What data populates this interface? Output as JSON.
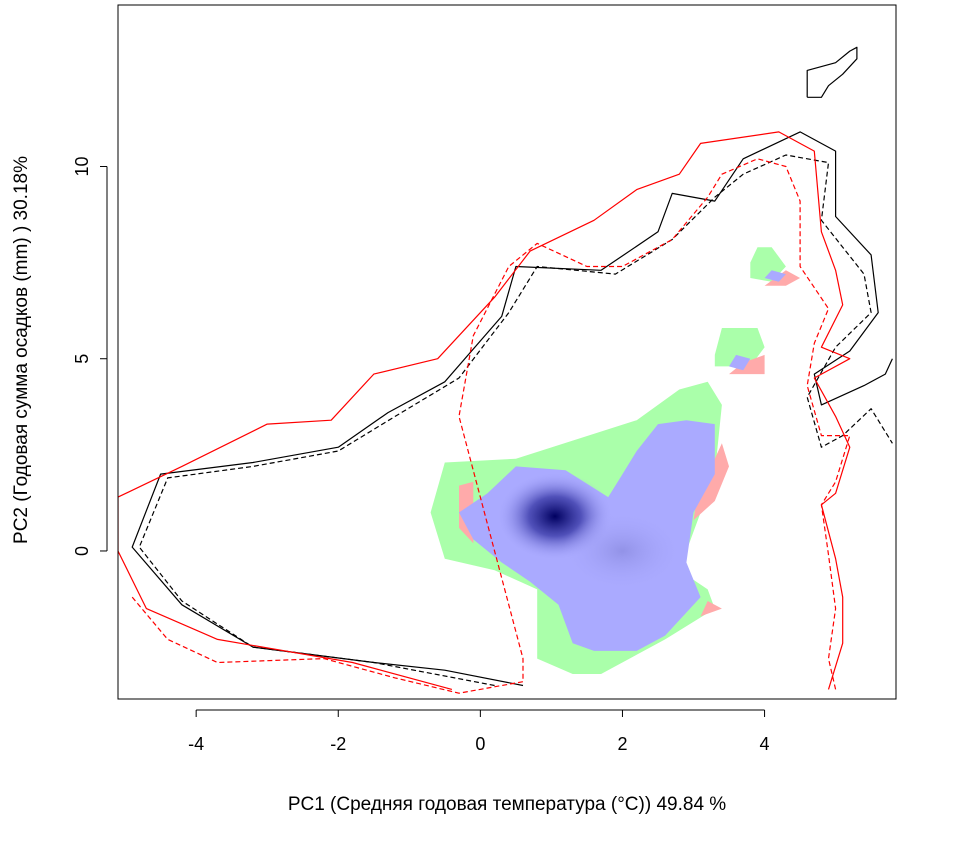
{
  "chart_data": {
    "type": "heatmap",
    "title": "",
    "xlabel": "PC1 (Средняя годовая температура (°C)) 49.84 %",
    "ylabel": "PC2 (Годовая сумма осадков  (mm) ) 30.18%",
    "xlim": [
      -5.1,
      5.85
    ],
    "ylim": [
      -3.85,
      14.2
    ],
    "x_ticks": [
      -4,
      -2,
      0,
      2,
      4
    ],
    "y_ticks": [
      0,
      5,
      10
    ],
    "grid": false,
    "legend": "none",
    "colors": {
      "density_low": "#aaaaff",
      "density_high": "#000060",
      "green": "#aaffaa",
      "pink": "#ffaaaa",
      "contour_black": "#000000",
      "contour_red": "#ff0000"
    },
    "regions": {
      "green": [
        [
          [
            -0.5,
            2.3
          ],
          [
            0.5,
            2.4
          ],
          [
            2.2,
            3.4
          ],
          [
            2.8,
            4.2
          ],
          [
            3.2,
            4.4
          ],
          [
            3.4,
            3.8
          ],
          [
            3.3,
            2.0
          ],
          [
            3.1,
            1.0
          ],
          [
            2.8,
            -0.5
          ],
          [
            3.2,
            -1.0
          ],
          [
            3.3,
            -1.5
          ],
          [
            2.6,
            -2.3
          ],
          [
            2.3,
            -2.6
          ],
          [
            1.7,
            -3.2
          ],
          [
            1.3,
            -3.2
          ],
          [
            0.8,
            -2.8
          ],
          [
            0.8,
            -1.0
          ],
          [
            0.2,
            -0.5
          ],
          [
            -0.5,
            -0.2
          ],
          [
            -0.7,
            1.0
          ]
        ],
        [
          [
            3.3,
            5.1
          ],
          [
            3.4,
            5.8
          ],
          [
            3.9,
            5.8
          ],
          [
            4.0,
            5.3
          ],
          [
            3.8,
            4.8
          ],
          [
            3.3,
            4.8
          ]
        ],
        [
          [
            3.8,
            7.5
          ],
          [
            3.9,
            7.9
          ],
          [
            4.1,
            7.9
          ],
          [
            4.3,
            7.4
          ],
          [
            4.1,
            7.0
          ],
          [
            3.8,
            7.1
          ]
        ]
      ],
      "blue": [
        [
          [
            0.1,
            1.5
          ],
          [
            0.5,
            2.2
          ],
          [
            1.2,
            2.1
          ],
          [
            1.8,
            1.4
          ],
          [
            2.0,
            2.0
          ],
          [
            2.2,
            2.6
          ],
          [
            2.5,
            3.3
          ],
          [
            2.9,
            3.4
          ],
          [
            3.3,
            3.3
          ],
          [
            3.3,
            2.0
          ],
          [
            3.0,
            1.0
          ],
          [
            2.9,
            -0.3
          ],
          [
            3.1,
            -1.2
          ],
          [
            2.6,
            -2.2
          ],
          [
            2.2,
            -2.6
          ],
          [
            1.6,
            -2.6
          ],
          [
            1.3,
            -2.4
          ],
          [
            1.1,
            -1.4
          ],
          [
            0.7,
            -0.8
          ],
          [
            0.3,
            -0.3
          ],
          [
            -0.1,
            0.3
          ],
          [
            -0.3,
            1.0
          ]
        ],
        [
          [
            3.5,
            4.8
          ],
          [
            3.6,
            5.1
          ],
          [
            3.8,
            5.0
          ],
          [
            3.7,
            4.7
          ]
        ],
        [
          [
            4.0,
            7.1
          ],
          [
            4.1,
            7.3
          ],
          [
            4.3,
            7.2
          ],
          [
            4.2,
            7.0
          ]
        ]
      ],
      "pink": [
        [
          [
            -0.3,
            1.7
          ],
          [
            -0.1,
            1.8
          ],
          [
            -0.1,
            0.2
          ],
          [
            -0.3,
            0.6
          ]
        ],
        [
          [
            3.3,
            2.4
          ],
          [
            3.4,
            2.8
          ],
          [
            3.5,
            2.2
          ],
          [
            3.3,
            1.3
          ],
          [
            3.0,
            0.8
          ],
          [
            3.1,
            2.0
          ]
        ],
        [
          [
            3.5,
            4.6
          ],
          [
            3.7,
            4.9
          ],
          [
            4.0,
            5.1
          ],
          [
            4.0,
            4.6
          ]
        ],
        [
          [
            4.0,
            6.9
          ],
          [
            4.3,
            6.9
          ],
          [
            4.5,
            7.1
          ],
          [
            4.3,
            7.3
          ]
        ],
        [
          [
            3.2,
            -1.3
          ],
          [
            3.4,
            -1.5
          ],
          [
            3.1,
            -1.7
          ]
        ]
      ]
    },
    "density_peaks": [
      {
        "x": 1.05,
        "y": 0.9,
        "level": 1.0
      },
      {
        "x": 2.0,
        "y": 0.0,
        "level": 0.3
      }
    ],
    "contours": [
      {
        "color": "#000000",
        "dash": "solid",
        "points": [
          [
            0.6,
            -3.5
          ],
          [
            -0.5,
            -3.1
          ],
          [
            -1.5,
            -2.9
          ],
          [
            -3.2,
            -2.5
          ],
          [
            -4.2,
            -1.4
          ],
          [
            -4.9,
            0.1
          ],
          [
            -4.5,
            2.0
          ],
          [
            -3.2,
            2.3
          ],
          [
            -2.0,
            2.7
          ],
          [
            -1.3,
            3.6
          ],
          [
            -0.5,
            4.4
          ],
          [
            0.3,
            6.1
          ],
          [
            0.5,
            7.4
          ],
          [
            1.7,
            7.3
          ],
          [
            2.5,
            8.3
          ],
          [
            2.7,
            9.3
          ],
          [
            3.3,
            9.1
          ],
          [
            3.7,
            10.2
          ],
          [
            4.5,
            10.9
          ],
          [
            5.0,
            10.4
          ],
          [
            5.0,
            8.7
          ],
          [
            5.5,
            7.7
          ],
          [
            5.6,
            6.2
          ],
          [
            5.2,
            5.2
          ],
          [
            4.7,
            4.6
          ],
          [
            4.8,
            3.8
          ],
          [
            5.4,
            4.3
          ],
          [
            5.7,
            4.6
          ],
          [
            5.8,
            5.0
          ]
        ]
      },
      {
        "color": "#000000",
        "dash": "dashed",
        "points": [
          [
            0.2,
            -3.5
          ],
          [
            -1.5,
            -2.9
          ],
          [
            -3.2,
            -2.5
          ],
          [
            -4.2,
            -1.3
          ],
          [
            -4.8,
            0.1
          ],
          [
            -4.4,
            1.9
          ],
          [
            -3.2,
            2.2
          ],
          [
            -2.0,
            2.6
          ],
          [
            -1.2,
            3.5
          ],
          [
            -0.3,
            4.5
          ],
          [
            0.4,
            6.2
          ],
          [
            0.8,
            7.4
          ],
          [
            1.9,
            7.2
          ],
          [
            2.7,
            8.1
          ],
          [
            3.3,
            9.2
          ],
          [
            3.7,
            9.8
          ],
          [
            4.3,
            10.3
          ],
          [
            4.9,
            10.1
          ],
          [
            4.8,
            8.6
          ],
          [
            5.4,
            7.2
          ],
          [
            5.5,
            6.2
          ],
          [
            5.0,
            5.3
          ],
          [
            4.6,
            4.0
          ],
          [
            4.8,
            2.7
          ],
          [
            5.1,
            3.0
          ],
          [
            5.5,
            3.7
          ],
          [
            5.8,
            2.8
          ]
        ]
      },
      {
        "color": "#ff0000",
        "dash": "solid",
        "points": [
          [
            -0.4,
            -3.6
          ],
          [
            -1.8,
            -2.9
          ],
          [
            -3.7,
            -2.3
          ],
          [
            -4.7,
            -1.5
          ],
          [
            -5.1,
            0.0
          ],
          [
            -5.1,
            1.4
          ],
          [
            -4.2,
            2.2
          ],
          [
            -3.0,
            3.3
          ],
          [
            -2.1,
            3.4
          ],
          [
            -1.5,
            4.6
          ],
          [
            -0.6,
            5.0
          ],
          [
            0.2,
            6.6
          ],
          [
            0.7,
            7.8
          ],
          [
            1.6,
            8.6
          ],
          [
            2.2,
            9.4
          ],
          [
            2.8,
            9.8
          ],
          [
            3.1,
            10.6
          ],
          [
            4.2,
            10.9
          ],
          [
            4.7,
            10.4
          ],
          [
            4.8,
            8.3
          ],
          [
            5.0,
            7.3
          ],
          [
            5.1,
            6.4
          ],
          [
            4.8,
            5.3
          ],
          [
            5.2,
            5.0
          ],
          [
            4.7,
            4.5
          ],
          [
            5.0,
            3.5
          ],
          [
            5.2,
            2.7
          ],
          [
            5.0,
            1.5
          ],
          [
            4.8,
            1.2
          ],
          [
            5.0,
            -0.2
          ],
          [
            5.1,
            -1.2
          ],
          [
            5.1,
            -2.4
          ],
          [
            4.9,
            -3.6
          ]
        ]
      },
      {
        "color": "#ff0000",
        "dash": "dashed",
        "points": [
          [
            -4.9,
            -1.2
          ],
          [
            -4.4,
            -2.3
          ],
          [
            -3.7,
            -2.9
          ],
          [
            -2.2,
            -2.8
          ],
          [
            -1.2,
            -3.3
          ],
          [
            -0.3,
            -3.7
          ],
          [
            0.6,
            -3.4
          ],
          [
            0.6,
            -2.8
          ],
          [
            -0.3,
            3.5
          ],
          [
            -0.1,
            5.6
          ],
          [
            0.4,
            7.4
          ],
          [
            0.8,
            8.0
          ],
          [
            1.5,
            7.4
          ],
          [
            2.0,
            7.4
          ],
          [
            2.7,
            8.1
          ],
          [
            3.2,
            9.2
          ],
          [
            3.4,
            9.8
          ],
          [
            3.9,
            10.2
          ],
          [
            4.3,
            10.0
          ],
          [
            4.5,
            9.1
          ],
          [
            4.5,
            7.4
          ],
          [
            4.9,
            6.3
          ],
          [
            4.7,
            5.4
          ],
          [
            4.6,
            4.3
          ],
          [
            4.8,
            3.0
          ],
          [
            5.2,
            3.0
          ],
          [
            5.0,
            1.8
          ],
          [
            4.8,
            1.2
          ],
          [
            4.9,
            -0.1
          ],
          [
            5.0,
            -1.5
          ],
          [
            4.9,
            -2.8
          ],
          [
            5.0,
            -3.6
          ]
        ]
      },
      {
        "color": "#000000",
        "dash": "solid",
        "points": [
          [
            4.6,
            11.8
          ],
          [
            4.6,
            12.5
          ],
          [
            5.0,
            12.7
          ],
          [
            5.2,
            13.0
          ],
          [
            5.3,
            13.1
          ],
          [
            5.3,
            12.8
          ],
          [
            5.1,
            12.4
          ],
          [
            4.9,
            12.1
          ],
          [
            4.8,
            11.8
          ],
          [
            4.6,
            11.8
          ]
        ]
      }
    ]
  }
}
